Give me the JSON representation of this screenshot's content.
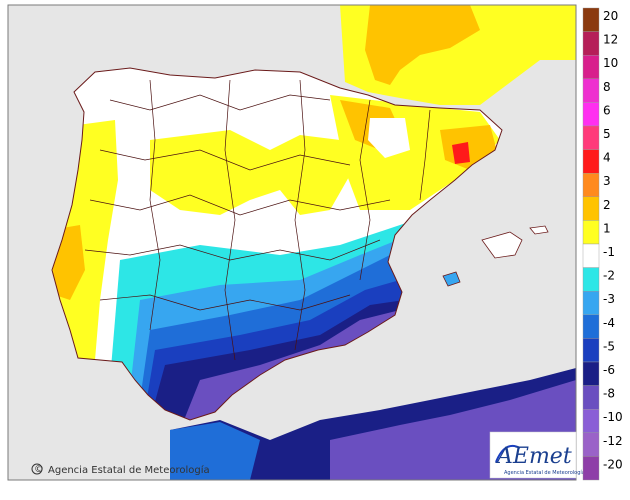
{
  "legend": {
    "classes": [
      {
        "label": "20",
        "color": "#8b3a0f"
      },
      {
        "label": "12",
        "color": "#b51f58"
      },
      {
        "label": "10",
        "color": "#d81f8c"
      },
      {
        "label": "8",
        "color": "#ee2fcf"
      },
      {
        "label": "6",
        "color": "#ff2ff0"
      },
      {
        "label": "5",
        "color": "#ff3a7a"
      },
      {
        "label": "4",
        "color": "#ff1a1a"
      },
      {
        "label": "3",
        "color": "#ff8a1e"
      },
      {
        "label": "2",
        "color": "#ffc300"
      },
      {
        "label": "1",
        "color": "#ffff22"
      },
      {
        "label": "-1",
        "color": "#ffffff"
      },
      {
        "label": "-2",
        "color": "#2de6e6"
      },
      {
        "label": "-3",
        "color": "#37a6f0"
      },
      {
        "label": "-4",
        "color": "#1f6ed8"
      },
      {
        "label": "-5",
        "color": "#1a3fbf"
      },
      {
        "label": "-6",
        "color": "#1a1f86"
      },
      {
        "label": "-8",
        "color": "#6a4fc0"
      },
      {
        "label": "-10",
        "color": "#8a5fd6"
      },
      {
        "label": "-12",
        "color": "#9a62c8"
      },
      {
        "label": "-20",
        "color": "#8e3ea8"
      }
    ]
  },
  "credit": {
    "copyright_symbol": "©",
    "text": "Agencia Estatal de Meteorología"
  },
  "logo": {
    "wordmark": "AEmet",
    "tagline": "Agencia Estatal de Meteorología"
  },
  "colors": {
    "sea": "#e6e6e6",
    "land_outline": "#6a1a1a",
    "border": "#4a1010",
    "frame": "#7a7a7a"
  }
}
